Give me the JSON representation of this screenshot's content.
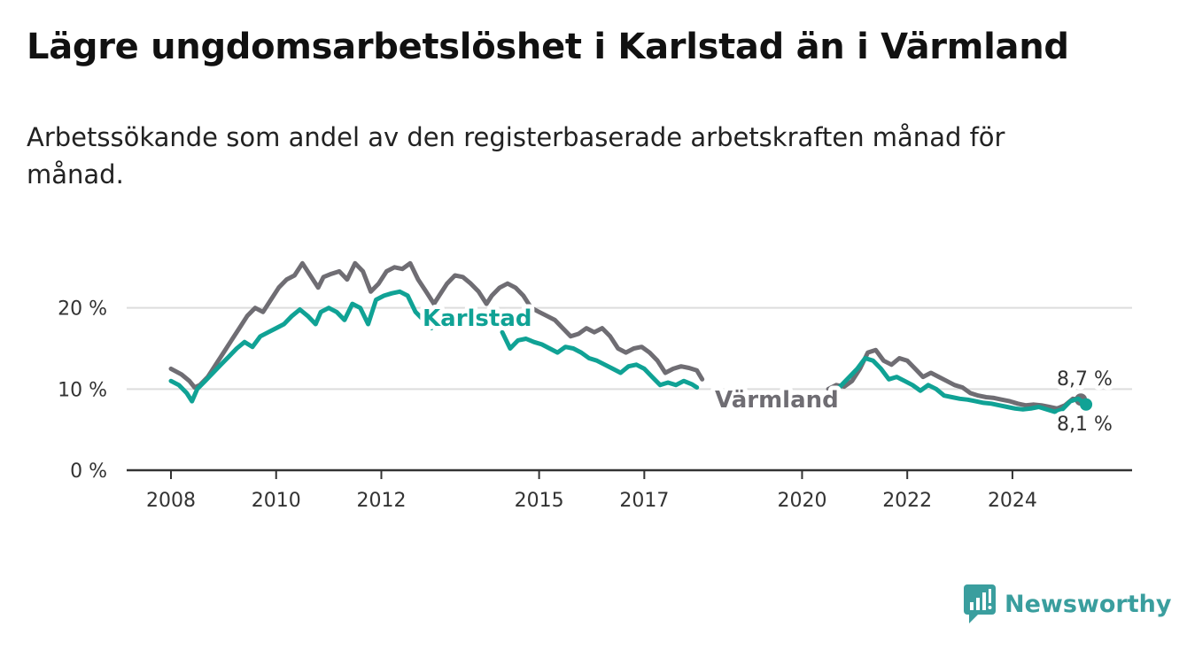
{
  "title": "Lägre ungdomsarbetslöshet i Karlstad än i Värmland",
  "subtitle": "Arbetssökande som andel av den registerbaserade arbetskraften månad för månad.",
  "brand": {
    "name": "Newsworthy",
    "color": "#3a9e9e",
    "icon": "chart-bubble-icon"
  },
  "colors": {
    "karlstad": "#10a295",
    "varmland": "#6f6d73",
    "grid": "#dddddd",
    "axis": "#333333"
  },
  "chart_data": {
    "type": "line",
    "x_ticks": [
      {
        "value": 2008,
        "label": "2008"
      },
      {
        "value": 2010,
        "label": "2010"
      },
      {
        "value": 2012,
        "label": "2012"
      },
      {
        "value": 2015,
        "label": "2015"
      },
      {
        "value": 2017,
        "label": "2017"
      },
      {
        "value": 2020,
        "label": "2020"
      },
      {
        "value": 2022,
        "label": "2022"
      },
      {
        "value": 2024,
        "label": "2024"
      }
    ],
    "y_ticks": [
      {
        "value": 0,
        "label": "0 %"
      },
      {
        "value": 10,
        "label": "10 %"
      },
      {
        "value": 20,
        "label": "20 %"
      }
    ],
    "xlim": [
      2008,
      2025.5
    ],
    "ylim": [
      0,
      30
    ],
    "grid": true,
    "series": [
      {
        "name": "Värmland",
        "label": "Värmland",
        "end_label": "8,7 %",
        "end_value": 8.7,
        "points": [
          [
            2008.0,
            12.5
          ],
          [
            2008.2,
            11.8
          ],
          [
            2008.35,
            11.0
          ],
          [
            2008.45,
            10.2
          ],
          [
            2008.55,
            10.5
          ],
          [
            2008.7,
            11.5
          ],
          [
            2008.85,
            13.0
          ],
          [
            2009.0,
            14.5
          ],
          [
            2009.15,
            16.0
          ],
          [
            2009.3,
            17.5
          ],
          [
            2009.45,
            19.0
          ],
          [
            2009.6,
            20.0
          ],
          [
            2009.75,
            19.5
          ],
          [
            2009.9,
            21.0
          ],
          [
            2010.05,
            22.5
          ],
          [
            2010.2,
            23.5
          ],
          [
            2010.35,
            24.0
          ],
          [
            2010.5,
            25.5
          ],
          [
            2010.65,
            24.0
          ],
          [
            2010.8,
            22.5
          ],
          [
            2010.9,
            23.8
          ],
          [
            2011.05,
            24.2
          ],
          [
            2011.2,
            24.5
          ],
          [
            2011.35,
            23.5
          ],
          [
            2011.5,
            25.5
          ],
          [
            2011.65,
            24.5
          ],
          [
            2011.8,
            22.0
          ],
          [
            2011.95,
            23.0
          ],
          [
            2012.1,
            24.5
          ],
          [
            2012.25,
            25.0
          ],
          [
            2012.4,
            24.8
          ],
          [
            2012.55,
            25.5
          ],
          [
            2012.7,
            23.5
          ],
          [
            2012.85,
            22.0
          ],
          [
            2013.0,
            20.5
          ],
          [
            2013.1,
            21.5
          ],
          [
            2013.25,
            23.0
          ],
          [
            2013.4,
            24.0
          ],
          [
            2013.55,
            23.8
          ],
          [
            2013.7,
            23.0
          ],
          [
            2013.85,
            22.0
          ],
          [
            2014.0,
            20.5
          ],
          [
            2014.1,
            21.5
          ],
          [
            2014.25,
            22.5
          ],
          [
            2014.4,
            23.0
          ],
          [
            2014.55,
            22.5
          ],
          [
            2014.7,
            21.5
          ],
          [
            2014.85,
            20.0
          ],
          [
            2015.0,
            19.5
          ],
          [
            2015.15,
            19.0
          ],
          [
            2015.3,
            18.5
          ],
          [
            2015.45,
            17.5
          ],
          [
            2015.6,
            16.5
          ],
          [
            2015.75,
            16.8
          ],
          [
            2015.9,
            17.5
          ],
          [
            2016.05,
            17.0
          ],
          [
            2016.2,
            17.5
          ],
          [
            2016.35,
            16.5
          ],
          [
            2016.5,
            15.0
          ],
          [
            2016.65,
            14.5
          ],
          [
            2016.8,
            15.0
          ],
          [
            2016.95,
            15.2
          ],
          [
            2017.1,
            14.5
          ],
          [
            2017.25,
            13.5
          ],
          [
            2017.4,
            12.0
          ],
          [
            2017.55,
            12.5
          ],
          [
            2017.7,
            12.8
          ],
          [
            2017.85,
            12.6
          ],
          [
            2018.0,
            12.3
          ],
          [
            2018.1,
            11.2
          ],
          [
            2020.5,
            10.0
          ],
          [
            2020.65,
            10.5
          ],
          [
            2020.8,
            10.3
          ],
          [
            2020.95,
            11.0
          ],
          [
            2021.1,
            12.5
          ],
          [
            2021.25,
            14.5
          ],
          [
            2021.4,
            14.8
          ],
          [
            2021.55,
            13.5
          ],
          [
            2021.7,
            13.0
          ],
          [
            2021.85,
            13.8
          ],
          [
            2022.0,
            13.5
          ],
          [
            2022.15,
            12.5
          ],
          [
            2022.3,
            11.5
          ],
          [
            2022.45,
            12.0
          ],
          [
            2022.6,
            11.5
          ],
          [
            2022.75,
            11.0
          ],
          [
            2022.9,
            10.5
          ],
          [
            2023.05,
            10.2
          ],
          [
            2023.2,
            9.5
          ],
          [
            2023.35,
            9.2
          ],
          [
            2023.5,
            9.0
          ],
          [
            2023.65,
            8.9
          ],
          [
            2023.8,
            8.7
          ],
          [
            2023.95,
            8.5
          ],
          [
            2024.1,
            8.2
          ],
          [
            2024.25,
            8.0
          ],
          [
            2024.4,
            8.1
          ],
          [
            2024.55,
            8.0
          ],
          [
            2024.7,
            7.8
          ],
          [
            2024.85,
            7.6
          ],
          [
            2025.0,
            8.0
          ],
          [
            2025.15,
            8.8
          ],
          [
            2025.3,
            8.7
          ]
        ]
      },
      {
        "name": "Karlstad",
        "label": "Karlstad",
        "end_label": "8,1 %",
        "end_value": 8.1,
        "points": [
          [
            2008.0,
            11.0
          ],
          [
            2008.15,
            10.5
          ],
          [
            2008.3,
            9.5
          ],
          [
            2008.4,
            8.5
          ],
          [
            2008.5,
            10.0
          ],
          [
            2008.65,
            11.0
          ],
          [
            2008.8,
            12.0
          ],
          [
            2008.95,
            13.0
          ],
          [
            2009.1,
            14.0
          ],
          [
            2009.25,
            15.0
          ],
          [
            2009.4,
            15.8
          ],
          [
            2009.55,
            15.2
          ],
          [
            2009.7,
            16.5
          ],
          [
            2009.85,
            17.0
          ],
          [
            2010.0,
            17.5
          ],
          [
            2010.15,
            18.0
          ],
          [
            2010.3,
            19.0
          ],
          [
            2010.45,
            19.8
          ],
          [
            2010.6,
            19.0
          ],
          [
            2010.75,
            18.0
          ],
          [
            2010.85,
            19.5
          ],
          [
            2011.0,
            20.0
          ],
          [
            2011.15,
            19.5
          ],
          [
            2011.3,
            18.5
          ],
          [
            2011.45,
            20.5
          ],
          [
            2011.6,
            20.0
          ],
          [
            2011.75,
            18.0
          ],
          [
            2011.9,
            21.0
          ],
          [
            2012.05,
            21.5
          ],
          [
            2012.2,
            21.8
          ],
          [
            2012.35,
            22.0
          ],
          [
            2012.5,
            21.5
          ],
          [
            2012.65,
            19.5
          ],
          [
            2012.8,
            18.5
          ],
          [
            2012.95,
            17.5
          ],
          [
            2013.1,
            19.5
          ],
          [
            2013.25,
            19.0
          ],
          [
            2014.3,
            17.0
          ],
          [
            2014.45,
            15.0
          ],
          [
            2014.6,
            16.0
          ],
          [
            2014.75,
            16.2
          ],
          [
            2014.9,
            15.8
          ],
          [
            2015.05,
            15.5
          ],
          [
            2015.2,
            15.0
          ],
          [
            2015.35,
            14.5
          ],
          [
            2015.5,
            15.2
          ],
          [
            2015.65,
            15.0
          ],
          [
            2015.8,
            14.5
          ],
          [
            2015.95,
            13.8
          ],
          [
            2016.1,
            13.5
          ],
          [
            2016.25,
            13.0
          ],
          [
            2016.4,
            12.5
          ],
          [
            2016.55,
            12.0
          ],
          [
            2016.7,
            12.8
          ],
          [
            2016.85,
            13.0
          ],
          [
            2017.0,
            12.5
          ],
          [
            2017.15,
            11.5
          ],
          [
            2017.3,
            10.5
          ],
          [
            2017.45,
            10.8
          ],
          [
            2017.6,
            10.5
          ],
          [
            2017.75,
            11.0
          ],
          [
            2017.9,
            10.6
          ],
          [
            2018.0,
            10.2
          ],
          [
            2020.6,
            9.5
          ],
          [
            2020.75,
            10.5
          ],
          [
            2020.9,
            11.5
          ],
          [
            2021.05,
            12.5
          ],
          [
            2021.2,
            13.8
          ],
          [
            2021.35,
            13.5
          ],
          [
            2021.5,
            12.5
          ],
          [
            2021.65,
            11.2
          ],
          [
            2021.8,
            11.5
          ],
          [
            2021.95,
            11.0
          ],
          [
            2022.1,
            10.5
          ],
          [
            2022.25,
            9.8
          ],
          [
            2022.4,
            10.5
          ],
          [
            2022.55,
            10.0
          ],
          [
            2022.7,
            9.2
          ],
          [
            2022.85,
            9.0
          ],
          [
            2023.0,
            8.8
          ],
          [
            2023.15,
            8.7
          ],
          [
            2023.3,
            8.5
          ],
          [
            2023.45,
            8.3
          ],
          [
            2023.6,
            8.2
          ],
          [
            2023.75,
            8.0
          ],
          [
            2023.9,
            7.8
          ],
          [
            2024.05,
            7.6
          ],
          [
            2024.2,
            7.5
          ],
          [
            2024.35,
            7.6
          ],
          [
            2024.5,
            7.8
          ],
          [
            2024.65,
            7.5
          ],
          [
            2024.8,
            7.2
          ],
          [
            2024.95,
            7.5
          ],
          [
            2025.1,
            8.5
          ],
          [
            2025.25,
            8.8
          ],
          [
            2025.4,
            8.1
          ]
        ]
      }
    ]
  }
}
